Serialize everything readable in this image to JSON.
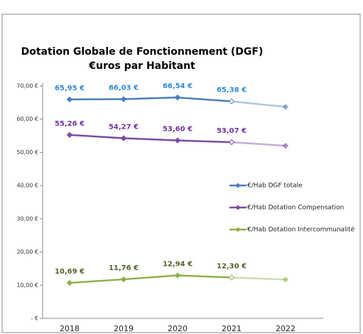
{
  "chart_data": {
    "type": "line",
    "title": "Dotation Globale de Fonctionnement (DGF)",
    "subtitle": "€uros par Habitant",
    "categories": [
      "2018",
      "2019",
      "2020",
      "2021",
      "2022"
    ],
    "series": [
      {
        "name": "€/Hab DGF totale",
        "color": "#4a7ebb",
        "label_color": "#2e8bcc",
        "values": [
          65.95,
          66.03,
          66.54,
          65.38,
          63.7
        ],
        "value_labels": [
          "65,95 €",
          "66,03 €",
          "66,54 €",
          "65,38 €",
          null
        ]
      },
      {
        "name": "€/Hab Dotation Compensation",
        "color": "#7d4a9e",
        "label_color": "#7030a0",
        "values": [
          55.26,
          54.27,
          53.6,
          53.07,
          52.0
        ],
        "value_labels": [
          "55,26 €",
          "54,27 €",
          "53,60 €",
          "53,07 €",
          null
        ]
      },
      {
        "name": "€/Hab Dotation Intercommunalité",
        "color": "#8db04a",
        "label_color": "#4f6228",
        "values": [
          10.69,
          11.76,
          12.94,
          12.3,
          11.7
        ],
        "value_labels": [
          "10,69 €",
          "11,76 €",
          "12,94 €",
          "12,30 €",
          null
        ]
      }
    ],
    "ylim": [
      0,
      70
    ],
    "yticks": [
      {
        "value": 0,
        "label": "- €"
      },
      {
        "value": 10,
        "label": "10,00 €"
      },
      {
        "value": 20,
        "label": "20,00 €"
      },
      {
        "value": 30,
        "label": "30,00 €"
      },
      {
        "value": 40,
        "label": "40,00 €"
      },
      {
        "value": 50,
        "label": "50,00 €"
      },
      {
        "value": 60,
        "label": "60,00 €"
      },
      {
        "value": 70,
        "label": "70,00 €"
      }
    ],
    "grid": false,
    "legend": "right"
  }
}
